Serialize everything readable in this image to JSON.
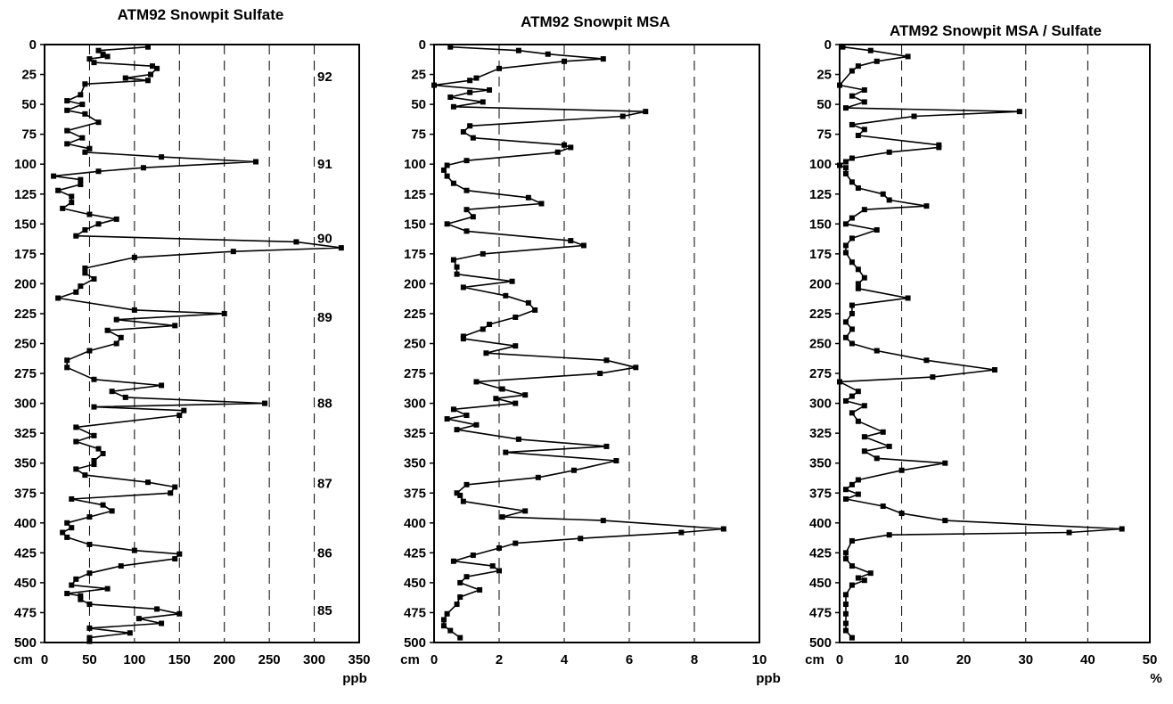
{
  "chart_data": [
    {
      "type": "line",
      "title": "ATM92 Snowpit Sulfate",
      "ylabel": "cm",
      "xlabel": "ppb",
      "xlim": [
        0,
        350
      ],
      "ylim": [
        0,
        500
      ],
      "y_reversed": true,
      "xticks": [
        0,
        50,
        100,
        150,
        200,
        250,
        300,
        350
      ],
      "yticks": [
        0,
        25,
        50,
        75,
        100,
        125,
        150,
        175,
        200,
        225,
        250,
        275,
        300,
        325,
        350,
        375,
        400,
        425,
        450,
        475,
        500
      ],
      "grid": "vertical dashed",
      "year_labels": [
        {
          "label": "92",
          "depth": 27
        },
        {
          "label": "91",
          "depth": 100
        },
        {
          "label": "90",
          "depth": 162
        },
        {
          "label": "89",
          "depth": 228
        },
        {
          "label": "88",
          "depth": 300
        },
        {
          "label": "87",
          "depth": 367
        },
        {
          "label": "86",
          "depth": 425
        },
        {
          "label": "85",
          "depth": 473
        }
      ],
      "points": [
        [
          115,
          2
        ],
        [
          60,
          5
        ],
        [
          65,
          8
        ],
        [
          70,
          10
        ],
        [
          50,
          12
        ],
        [
          55,
          15
        ],
        [
          120,
          18
        ],
        [
          125,
          20
        ],
        [
          118,
          25
        ],
        [
          90,
          28
        ],
        [
          115,
          30
        ],
        [
          45,
          33
        ],
        [
          40,
          42
        ],
        [
          25,
          47
        ],
        [
          42,
          50
        ],
        [
          25,
          55
        ],
        [
          45,
          58
        ],
        [
          60,
          65
        ],
        [
          25,
          72
        ],
        [
          42,
          78
        ],
        [
          25,
          83
        ],
        [
          50,
          87
        ],
        [
          45,
          90
        ],
        [
          130,
          94
        ],
        [
          235,
          98
        ],
        [
          110,
          103
        ],
        [
          60,
          106
        ],
        [
          10,
          110
        ],
        [
          40,
          113
        ],
        [
          40,
          117
        ],
        [
          15,
          122
        ],
        [
          30,
          127
        ],
        [
          30,
          132
        ],
        [
          20,
          137
        ],
        [
          50,
          142
        ],
        [
          80,
          146
        ],
        [
          60,
          150
        ],
        [
          45,
          155
        ],
        [
          35,
          160
        ],
        [
          280,
          165
        ],
        [
          330,
          170
        ],
        [
          210,
          173
        ],
        [
          100,
          178
        ],
        [
          45,
          187
        ],
        [
          45,
          191
        ],
        [
          55,
          196
        ],
        [
          40,
          202
        ],
        [
          35,
          207
        ],
        [
          15,
          212
        ],
        [
          100,
          222
        ],
        [
          200,
          225
        ],
        [
          80,
          230
        ],
        [
          145,
          235
        ],
        [
          70,
          239
        ],
        [
          85,
          245
        ],
        [
          80,
          250
        ],
        [
          50,
          256
        ],
        [
          25,
          264
        ],
        [
          25,
          270
        ],
        [
          55,
          280
        ],
        [
          130,
          285
        ],
        [
          75,
          290
        ],
        [
          90,
          295
        ],
        [
          245,
          300
        ],
        [
          55,
          303
        ],
        [
          155,
          306
        ],
        [
          150,
          310
        ],
        [
          35,
          320
        ],
        [
          55,
          327
        ],
        [
          35,
          332
        ],
        [
          60,
          338
        ],
        [
          65,
          342
        ],
        [
          55,
          348
        ],
        [
          55,
          351
        ],
        [
          35,
          355
        ],
        [
          45,
          360
        ],
        [
          115,
          366
        ],
        [
          145,
          370
        ],
        [
          140,
          375
        ],
        [
          30,
          380
        ],
        [
          65,
          385
        ],
        [
          75,
          390
        ],
        [
          50,
          395
        ],
        [
          25,
          400
        ],
        [
          30,
          404
        ],
        [
          20,
          408
        ],
        [
          25,
          412
        ],
        [
          50,
          418
        ],
        [
          100,
          423
        ],
        [
          150,
          426
        ],
        [
          145,
          430
        ],
        [
          85,
          436
        ],
        [
          50,
          442
        ],
        [
          35,
          447
        ],
        [
          30,
          452
        ],
        [
          70,
          455
        ],
        [
          25,
          459
        ],
        [
          40,
          461
        ],
        [
          40,
          464
        ],
        [
          50,
          468
        ],
        [
          125,
          472
        ],
        [
          150,
          476
        ],
        [
          105,
          480
        ],
        [
          130,
          484
        ],
        [
          50,
          488
        ],
        [
          95,
          492
        ],
        [
          50,
          496
        ],
        [
          50,
          499
        ]
      ]
    },
    {
      "type": "line",
      "title": "ATM92 Snowpit MSA",
      "ylabel": "cm",
      "xlabel": "ppb",
      "xlim": [
        0,
        10
      ],
      "ylim": [
        0,
        500
      ],
      "y_reversed": true,
      "xticks": [
        0,
        2,
        4,
        6,
        8,
        10
      ],
      "yticks": [
        0,
        25,
        50,
        75,
        100,
        125,
        150,
        175,
        200,
        225,
        250,
        275,
        300,
        325,
        350,
        375,
        400,
        425,
        450,
        475,
        500
      ],
      "grid": "vertical dashed",
      "points": [
        [
          0.5,
          2
        ],
        [
          2.6,
          5
        ],
        [
          3.5,
          8
        ],
        [
          5.2,
          12
        ],
        [
          4.0,
          14
        ],
        [
          2.0,
          20
        ],
        [
          1.3,
          28
        ],
        [
          1.1,
          30
        ],
        [
          0.0,
          34
        ],
        [
          1.7,
          38
        ],
        [
          1.1,
          40
        ],
        [
          0.5,
          44
        ],
        [
          1.5,
          48
        ],
        [
          0.6,
          52
        ],
        [
          6.5,
          56
        ],
        [
          5.8,
          60
        ],
        [
          1.1,
          68
        ],
        [
          0.9,
          73
        ],
        [
          1.2,
          78
        ],
        [
          4.0,
          84
        ],
        [
          4.2,
          86
        ],
        [
          3.8,
          90
        ],
        [
          1.0,
          97
        ],
        [
          0.4,
          101
        ],
        [
          0.3,
          105
        ],
        [
          0.4,
          110
        ],
        [
          0.6,
          116
        ],
        [
          1.0,
          122
        ],
        [
          2.9,
          128
        ],
        [
          3.3,
          133
        ],
        [
          1.0,
          138
        ],
        [
          1.2,
          144
        ],
        [
          0.4,
          150
        ],
        [
          1.0,
          156
        ],
        [
          4.2,
          164
        ],
        [
          4.6,
          168
        ],
        [
          1.5,
          175
        ],
        [
          0.6,
          180
        ],
        [
          0.7,
          186
        ],
        [
          0.7,
          192
        ],
        [
          2.4,
          198
        ],
        [
          0.9,
          203
        ],
        [
          2.2,
          210
        ],
        [
          2.9,
          216
        ],
        [
          3.1,
          222
        ],
        [
          2.5,
          228
        ],
        [
          1.7,
          234
        ],
        [
          1.5,
          238
        ],
        [
          0.9,
          244
        ],
        [
          0.9,
          246
        ],
        [
          2.5,
          252
        ],
        [
          1.6,
          258
        ],
        [
          5.3,
          264
        ],
        [
          6.2,
          270
        ],
        [
          5.1,
          275
        ],
        [
          1.3,
          282
        ],
        [
          2.1,
          288
        ],
        [
          2.8,
          293
        ],
        [
          1.9,
          296
        ],
        [
          2.5,
          300
        ],
        [
          0.6,
          305
        ],
        [
          1.0,
          310
        ],
        [
          0.4,
          313
        ],
        [
          1.3,
          318
        ],
        [
          0.7,
          322
        ],
        [
          2.6,
          330
        ],
        [
          5.3,
          336
        ],
        [
          2.2,
          341
        ],
        [
          5.6,
          348
        ],
        [
          4.3,
          356
        ],
        [
          3.2,
          362
        ],
        [
          1.0,
          368
        ],
        [
          0.7,
          375
        ],
        [
          0.8,
          377
        ],
        [
          0.9,
          382
        ],
        [
          2.8,
          390
        ],
        [
          2.1,
          395
        ],
        [
          5.2,
          398
        ],
        [
          8.9,
          405
        ],
        [
          7.6,
          408
        ],
        [
          4.5,
          413
        ],
        [
          2.5,
          417
        ],
        [
          2.0,
          421
        ],
        [
          1.2,
          427
        ],
        [
          0.6,
          432
        ],
        [
          1.8,
          436
        ],
        [
          2.0,
          440
        ],
        [
          1.0,
          445
        ],
        [
          0.8,
          450
        ],
        [
          1.4,
          456
        ],
        [
          0.8,
          462
        ],
        [
          0.7,
          468
        ],
        [
          0.4,
          476
        ],
        [
          0.3,
          481
        ],
        [
          0.3,
          486
        ],
        [
          0.5,
          490
        ],
        [
          0.8,
          496
        ]
      ]
    },
    {
      "type": "line",
      "title": "ATM92 Snowpit MSA / Sulfate",
      "ylabel": "cm",
      "xlabel": "%",
      "xlim": [
        0,
        50
      ],
      "ylim": [
        0,
        500
      ],
      "y_reversed": true,
      "xticks": [
        0,
        10,
        20,
        30,
        40,
        50
      ],
      "yticks": [
        0,
        25,
        50,
        75,
        100,
        125,
        150,
        175,
        200,
        225,
        250,
        275,
        300,
        325,
        350,
        375,
        400,
        425,
        450,
        475,
        500
      ],
      "grid": "vertical dashed",
      "points": [
        [
          0.5,
          2
        ],
        [
          5,
          5
        ],
        [
          11,
          10
        ],
        [
          6,
          14
        ],
        [
          3,
          18
        ],
        [
          2,
          22
        ],
        [
          0,
          34
        ],
        [
          4,
          38
        ],
        [
          2,
          43
        ],
        [
          4,
          48
        ],
        [
          1,
          53
        ],
        [
          29,
          56
        ],
        [
          12,
          60
        ],
        [
          2,
          67
        ],
        [
          4,
          71
        ],
        [
          3,
          76
        ],
        [
          16,
          84
        ],
        [
          16,
          86
        ],
        [
          8,
          90
        ],
        [
          2,
          95
        ],
        [
          1,
          98
        ],
        [
          0,
          101
        ],
        [
          1,
          103
        ],
        [
          1,
          108
        ],
        [
          2,
          115
        ],
        [
          3,
          120
        ],
        [
          7,
          125
        ],
        [
          8,
          130
        ],
        [
          14,
          135
        ],
        [
          4,
          138
        ],
        [
          2,
          145
        ],
        [
          1,
          150
        ],
        [
          6,
          155
        ],
        [
          2,
          162
        ],
        [
          1,
          168
        ],
        [
          1,
          174
        ],
        [
          2,
          182
        ],
        [
          3,
          188
        ],
        [
          4,
          195
        ],
        [
          3,
          200
        ],
        [
          3,
          204
        ],
        [
          11,
          212
        ],
        [
          2,
          218
        ],
        [
          2,
          225
        ],
        [
          1,
          232
        ],
        [
          2,
          238
        ],
        [
          1,
          245
        ],
        [
          2,
          250
        ],
        [
          6,
          256
        ],
        [
          14,
          264
        ],
        [
          25,
          272
        ],
        [
          15,
          278
        ],
        [
          0,
          282
        ],
        [
          3,
          290
        ],
        [
          2,
          294
        ],
        [
          1,
          298
        ],
        [
          4,
          302
        ],
        [
          2,
          308
        ],
        [
          3,
          315
        ],
        [
          7,
          324
        ],
        [
          4,
          328
        ],
        [
          8,
          336
        ],
        [
          4,
          340
        ],
        [
          6,
          346
        ],
        [
          17,
          350
        ],
        [
          10,
          356
        ],
        [
          3,
          364
        ],
        [
          2,
          368
        ],
        [
          1,
          372
        ],
        [
          3,
          376
        ],
        [
          1,
          380
        ],
        [
          7,
          386
        ],
        [
          10,
          392
        ],
        [
          17,
          398
        ],
        [
          45.5,
          405
        ],
        [
          37,
          408
        ],
        [
          8,
          410
        ],
        [
          2,
          415
        ],
        [
          1,
          425
        ],
        [
          1,
          430
        ],
        [
          2,
          436
        ],
        [
          5,
          442
        ],
        [
          3,
          446
        ],
        [
          4,
          448
        ],
        [
          2,
          452
        ],
        [
          1,
          460
        ],
        [
          1,
          468
        ],
        [
          1,
          476
        ],
        [
          1,
          484
        ],
        [
          1,
          490
        ],
        [
          2,
          496
        ]
      ]
    }
  ]
}
